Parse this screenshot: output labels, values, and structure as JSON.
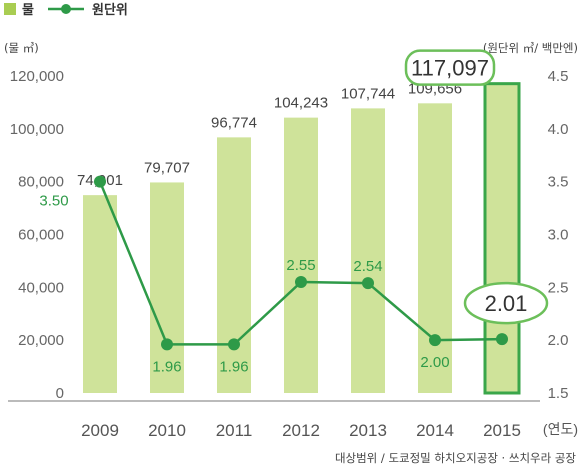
{
  "legend": {
    "bar_label": "물",
    "line_label": "원단위"
  },
  "axes": {
    "left_unit": "(물 ㎥)",
    "right_unit": "(원단위 ㎥/ 백만엔)",
    "x_unit": "(연도)"
  },
  "footnote": "대상범위 / 도쿄정밀 하치오지공장 · 쓰치우라 공장",
  "chart_data": {
    "type": "bar",
    "categories": [
      "2009",
      "2010",
      "2011",
      "2012",
      "2013",
      "2014",
      "2015"
    ],
    "series": [
      {
        "name": "물",
        "type": "bar",
        "axis": "left",
        "values": [
          74901,
          79707,
          96774,
          104243,
          107744,
          109656,
          117097
        ],
        "labels": [
          "74,901",
          "79,707",
          "96,774",
          "104,243",
          "107,744",
          "109,656",
          "117,097"
        ]
      },
      {
        "name": "원단위",
        "type": "line",
        "axis": "right",
        "values": [
          3.5,
          1.96,
          1.96,
          2.55,
          2.54,
          2.0,
          2.01
        ],
        "labels": [
          "3.50",
          "1.96",
          "1.96",
          "2.55",
          "2.54",
          "2.00",
          "2.01"
        ]
      }
    ],
    "left_axis": {
      "ylim": [
        0,
        120000
      ],
      "ticks": [
        0,
        20000,
        40000,
        60000,
        80000,
        100000,
        120000
      ],
      "tick_labels": [
        "0",
        "20,000",
        "40,000",
        "60,000",
        "80,000",
        "100,000",
        "120,000"
      ]
    },
    "right_axis": {
      "ylim": [
        1.5,
        4.5
      ],
      "ticks": [
        1.5,
        2.0,
        2.5,
        3.0,
        3.5,
        4.0,
        4.5
      ],
      "tick_labels": [
        "1.5",
        "2.0",
        "2.5",
        "3.0",
        "3.5",
        "4.0",
        "4.5"
      ]
    },
    "highlight": "2015",
    "grid": false,
    "legend_position": "top-left",
    "colors": {
      "bar": "#cfe39a",
      "bar_highlight": "#cfe39a",
      "bar_highlight_border": "#3aa64a",
      "line": "#2e9a48",
      "legend_bar": "#a9cd52",
      "callout_border": "#6cbf5a"
    }
  }
}
